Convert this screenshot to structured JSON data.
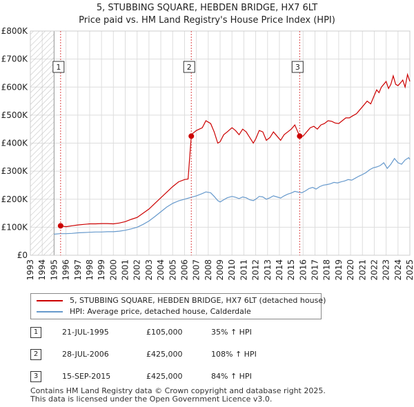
{
  "title_line1": "5, STUBBING SQUARE, HEBDEN BRIDGE, HX7 6LT",
  "title_line2": "Price paid vs. HM Land Registry's House Price Index (HPI)",
  "colors": {
    "price_paid": "#cc0000",
    "hpi": "#6699cc",
    "marker_line": "#dd4444",
    "grid": "#dddddd"
  },
  "legend": {
    "price_paid_label": "5, STUBBING SQUARE, HEBDEN BRIDGE, HX7 6LT (detached house)",
    "hpi_label": "HPI: Average price, detached house, Calderdale"
  },
  "sales": [
    {
      "num": "1",
      "date": "21-JUL-1995",
      "price": "£105,000",
      "hpi": "35% ↑ HPI"
    },
    {
      "num": "2",
      "date": "28-JUL-2006",
      "price": "£425,000",
      "hpi": "108% ↑ HPI"
    },
    {
      "num": "3",
      "date": "15-SEP-2015",
      "price": "£425,000",
      "hpi": "84% ↑ HPI"
    }
  ],
  "footer_line1": "Contains HM Land Registry data © Crown copyright and database right 2025.",
  "footer_line2": "This data is licensed under the Open Government Licence v3.0.",
  "chart_data": {
    "type": "line",
    "xlim": [
      1993,
      2025
    ],
    "ylim": [
      0,
      800000
    ],
    "yticks": [
      0,
      100000,
      200000,
      300000,
      400000,
      500000,
      600000,
      700000,
      800000
    ],
    "ytick_labels": [
      "£0",
      "£100K",
      "£200K",
      "£300K",
      "£400K",
      "£500K",
      "£600K",
      "£700K",
      "£800K"
    ],
    "xticks": [
      1993,
      1994,
      1995,
      1996,
      1997,
      1998,
      1999,
      2000,
      2001,
      2002,
      2003,
      2004,
      2005,
      2006,
      2007,
      2008,
      2009,
      2010,
      2011,
      2012,
      2013,
      2014,
      2015,
      2016,
      2017,
      2018,
      2019,
      2020,
      2021,
      2022,
      2023,
      2024,
      2025
    ],
    "hatched_before": 1995.0,
    "grid": true,
    "series": [
      {
        "name": "5, STUBBING SQUARE, HEBDEN BRIDGE, HX7 6LT (detached house)",
        "color": "#cc0000",
        "x": [
          1995.55,
          1996.0,
          1996.5,
          1997.0,
          1997.5,
          1998.0,
          1998.5,
          1999.0,
          1999.5,
          2000.0,
          2000.5,
          2001.0,
          2001.5,
          2002.0,
          2002.5,
          2003.0,
          2003.5,
          2004.0,
          2004.5,
          2005.0,
          2005.5,
          2006.0,
          2006.3,
          2006.57,
          2006.7,
          2007.0,
          2007.5,
          2007.8,
          2008.2,
          2008.5,
          2008.8,
          2009.0,
          2009.3,
          2009.6,
          2010.0,
          2010.3,
          2010.6,
          2010.9,
          2011.2,
          2011.5,
          2011.8,
          2012.0,
          2012.3,
          2012.6,
          2012.9,
          2013.2,
          2013.5,
          2013.8,
          2014.1,
          2014.4,
          2014.7,
          2015.0,
          2015.3,
          2015.5,
          2015.71,
          2016.0,
          2016.3,
          2016.6,
          2016.9,
          2017.2,
          2017.5,
          2017.8,
          2018.1,
          2018.4,
          2018.7,
          2019.0,
          2019.3,
          2019.6,
          2019.9,
          2020.2,
          2020.5,
          2020.8,
          2021.1,
          2021.4,
          2021.7,
          2022.0,
          2022.2,
          2022.4,
          2022.6,
          2022.8,
          2023.0,
          2023.2,
          2023.4,
          2023.6,
          2023.8,
          2024.0,
          2024.2,
          2024.4,
          2024.6,
          2024.8,
          2025.0
        ],
        "values": [
          105000,
          102000,
          105000,
          108000,
          110000,
          112000,
          112000,
          113000,
          113000,
          112000,
          115000,
          120000,
          128000,
          135000,
          150000,
          165000,
          185000,
          205000,
          225000,
          245000,
          262000,
          270000,
          272000,
          425000,
          435000,
          445000,
          455000,
          480000,
          470000,
          440000,
          400000,
          405000,
          430000,
          440000,
          455000,
          445000,
          430000,
          450000,
          440000,
          420000,
          400000,
          415000,
          445000,
          440000,
          410000,
          420000,
          440000,
          425000,
          410000,
          430000,
          440000,
          450000,
          465000,
          445000,
          425000,
          425000,
          440000,
          455000,
          460000,
          450000,
          465000,
          470000,
          480000,
          478000,
          472000,
          470000,
          480000,
          490000,
          490000,
          498000,
          505000,
          520000,
          535000,
          550000,
          540000,
          570000,
          590000,
          580000,
          600000,
          610000,
          620000,
          595000,
          610000,
          640000,
          610000,
          605000,
          615000,
          625000,
          600000,
          645000,
          620000
        ]
      },
      {
        "name": "HPI: Average price, detached house, Calderdale",
        "color": "#6699cc",
        "x": [
          1995.0,
          1995.5,
          1996.0,
          1996.5,
          1997.0,
          1997.5,
          1998.0,
          1998.5,
          1999.0,
          1999.5,
          2000.0,
          2000.5,
          2001.0,
          2001.5,
          2002.0,
          2002.5,
          2003.0,
          2003.5,
          2004.0,
          2004.5,
          2005.0,
          2005.5,
          2006.0,
          2006.5,
          2007.0,
          2007.5,
          2007.8,
          2008.2,
          2008.5,
          2008.8,
          2009.0,
          2009.3,
          2009.6,
          2010.0,
          2010.3,
          2010.6,
          2010.9,
          2011.2,
          2011.5,
          2011.8,
          2012.0,
          2012.3,
          2012.6,
          2012.9,
          2013.2,
          2013.5,
          2013.8,
          2014.1,
          2014.4,
          2014.7,
          2015.0,
          2015.3,
          2015.6,
          2015.9,
          2016.2,
          2016.5,
          2016.8,
          2017.1,
          2017.4,
          2017.7,
          2018.0,
          2018.3,
          2018.6,
          2018.9,
          2019.2,
          2019.5,
          2019.8,
          2020.1,
          2020.4,
          2020.7,
          2021.0,
          2021.3,
          2021.6,
          2021.9,
          2022.2,
          2022.5,
          2022.8,
          2023.1,
          2023.4,
          2023.7,
          2024.0,
          2024.3,
          2024.6,
          2024.9,
          2025.0
        ],
        "values": [
          75000,
          77000,
          77000,
          78000,
          80000,
          81000,
          82000,
          83000,
          83000,
          84000,
          84000,
          86000,
          89000,
          94000,
          100000,
          110000,
          122000,
          138000,
          155000,
          172000,
          185000,
          194000,
          200000,
          206000,
          212000,
          220000,
          226000,
          223000,
          210000,
          195000,
          190000,
          198000,
          205000,
          210000,
          207000,
          202000,
          208000,
          205000,
          198000,
          195000,
          200000,
          210000,
          208000,
          200000,
          205000,
          212000,
          208000,
          204000,
          212000,
          218000,
          222000,
          228000,
          225000,
          223000,
          230000,
          238000,
          242000,
          236000,
          245000,
          250000,
          252000,
          255000,
          260000,
          258000,
          262000,
          265000,
          270000,
          268000,
          275000,
          282000,
          288000,
          295000,
          305000,
          312000,
          315000,
          320000,
          330000,
          310000,
          325000,
          345000,
          330000,
          325000,
          340000,
          348000,
          342000
        ]
      }
    ],
    "sale_points": [
      {
        "label": "1",
        "x": 1995.55,
        "value": 105000
      },
      {
        "label": "2",
        "x": 2006.57,
        "value": 425000
      },
      {
        "label": "3",
        "x": 2015.71,
        "value": 425000
      }
    ]
  }
}
